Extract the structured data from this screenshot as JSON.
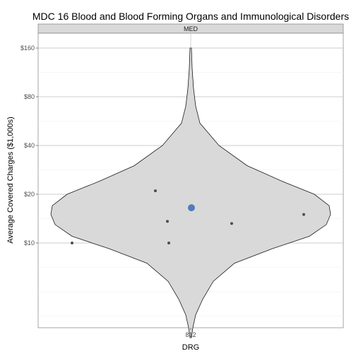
{
  "chart_data": {
    "type": "violin",
    "title": "MDC 16 Blood and Blood Forming Organs and Immunological Disorders",
    "facet_label": "MED",
    "xlabel": "DRG",
    "ylabel": "Average Covered Charges ($1,000s)",
    "y_scale": "log2",
    "ylim": [
      2.6,
      200
    ],
    "y_ticks": [
      {
        "value": 10,
        "label": "$10"
      },
      {
        "value": 20,
        "label": "$20"
      },
      {
        "value": 40,
        "label": "$40"
      },
      {
        "value": 80,
        "label": "$80"
      },
      {
        "value": 160,
        "label": "$160"
      }
    ],
    "categories": [
      "812"
    ],
    "violin": {
      "category": "812",
      "min": 2.6,
      "max": 160,
      "fill": "#d9d9d9",
      "outline": "#1a1a1a"
    },
    "points": [
      {
        "category": "812",
        "y": 10,
        "color": "#4d4d4d"
      },
      {
        "category": "812",
        "y": 10,
        "color": "#4d4d4d"
      },
      {
        "category": "812",
        "y": 21,
        "color": "#4d4d4d"
      },
      {
        "category": "812",
        "y": 13.6,
        "color": "#4d4d4d"
      },
      {
        "category": "812",
        "y": 13.2,
        "color": "#4d4d4d"
      },
      {
        "category": "812",
        "y": 15,
        "color": "#4d4d4d"
      }
    ],
    "highlight_point": {
      "category": "812",
      "y": 16.5,
      "color": "#4f7db8"
    },
    "grid": true
  }
}
